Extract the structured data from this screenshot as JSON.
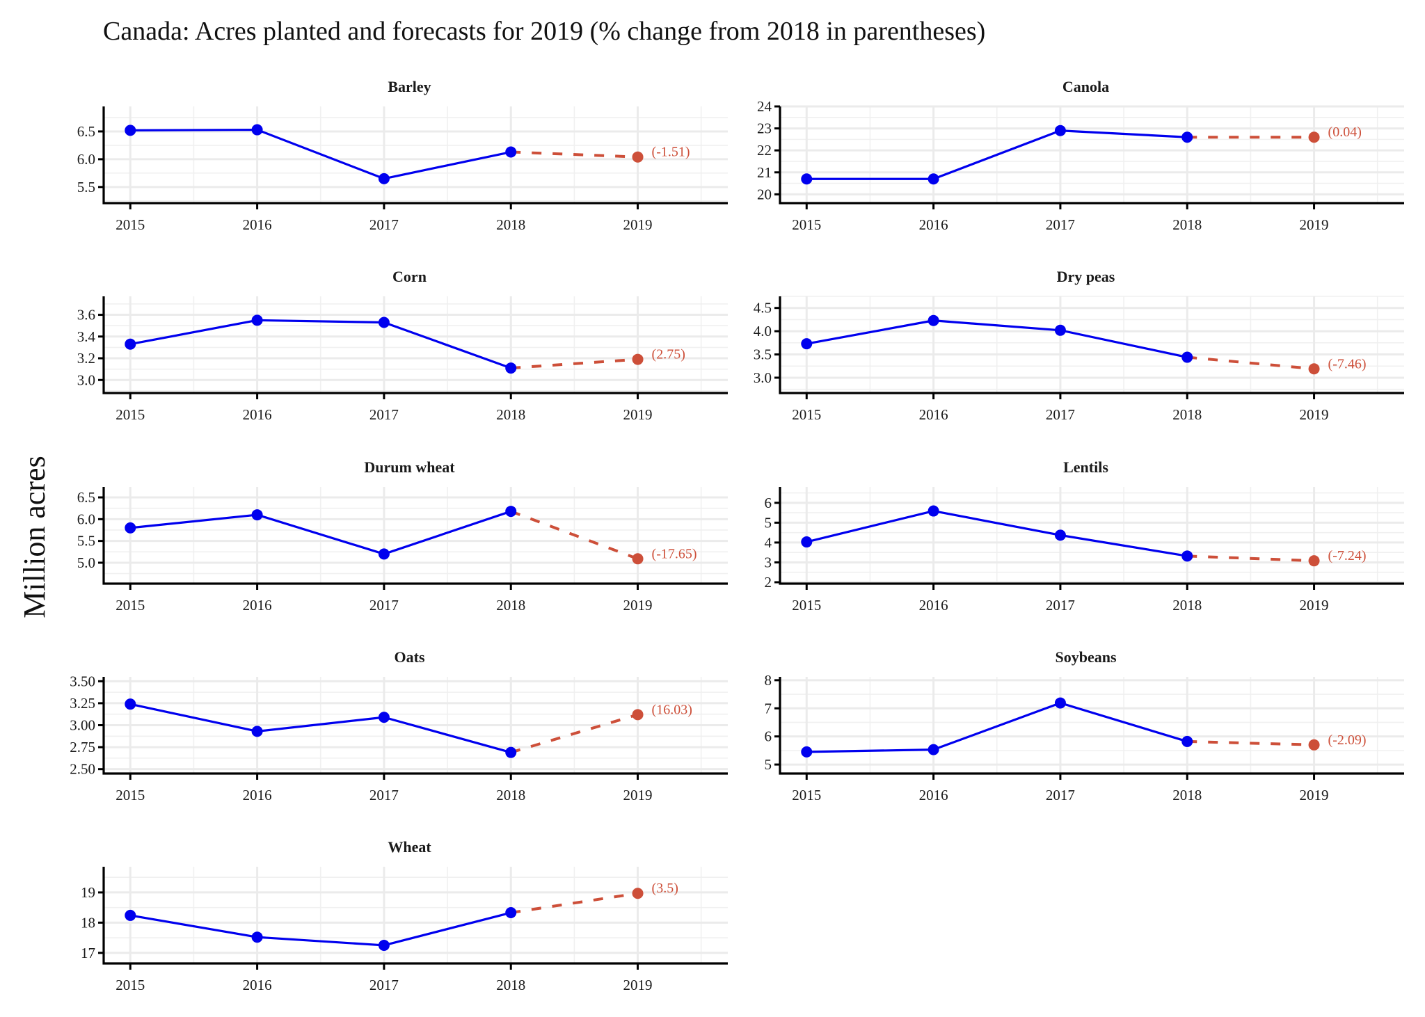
{
  "chart_data": {
    "type": "line",
    "title": "Canada: Acres planted and forecasts for 2019 (% change from 2018 in parentheses)",
    "ylabel": "Million acres",
    "xlabel": "",
    "x": [
      2015,
      2016,
      2017,
      2018,
      2019
    ],
    "x_tick_labels": [
      "2015",
      "2016",
      "2017",
      "2018",
      "2019"
    ],
    "xlim": [
      2014.79,
      2019.71
    ],
    "grid": true,
    "legend": "none",
    "colors": {
      "actual": "#0000ee",
      "forecast": "#cd4f39"
    },
    "series_style": {
      "actual": "solid line with points, 2015-2018",
      "forecast": "dashed line from 2018 to 2019 forecast point"
    },
    "panels": [
      {
        "name": "Barley",
        "actual": [
          6.52,
          6.53,
          5.65,
          6.13
        ],
        "forecast": 6.04,
        "pct_change_label": "(-1.51)",
        "ylim": [
          5.21,
          6.95
        ],
        "y_ticks": [
          5.5,
          6.0,
          6.5
        ],
        "y_tick_labels": [
          "5.5",
          "6.0",
          "6.5"
        ]
      },
      {
        "name": "Canola",
        "actual": [
          20.7,
          20.7,
          22.9,
          22.6
        ],
        "forecast": 22.6,
        "pct_change_label": "(0.04)",
        "ylim": [
          19.6,
          24.0
        ],
        "y_ticks": [
          20,
          21,
          22,
          23,
          24
        ],
        "y_tick_labels": [
          "20",
          "21",
          "22",
          "23",
          "24"
        ]
      },
      {
        "name": "Corn",
        "actual": [
          3.33,
          3.55,
          3.53,
          3.11
        ],
        "forecast": 3.19,
        "pct_change_label": "(2.75)",
        "ylim": [
          2.88,
          3.77
        ],
        "y_ticks": [
          3.0,
          3.2,
          3.4,
          3.6
        ],
        "y_tick_labels": [
          "3.0",
          "3.2",
          "3.4",
          "3.6"
        ]
      },
      {
        "name": "Dry peas",
        "actual": [
          3.73,
          4.23,
          4.02,
          3.44
        ],
        "forecast": 3.19,
        "pct_change_label": "(-7.46)",
        "ylim": [
          2.67,
          4.75
        ],
        "y_ticks": [
          3.0,
          3.5,
          4.0,
          4.5
        ],
        "y_tick_labels": [
          "3.0",
          "3.5",
          "4.0",
          "4.5"
        ]
      },
      {
        "name": "Durum wheat",
        "actual": [
          5.8,
          6.1,
          5.2,
          6.18
        ],
        "forecast": 5.09,
        "pct_change_label": "(-17.65)",
        "ylim": [
          4.52,
          6.74
        ],
        "y_ticks": [
          5.0,
          5.5,
          6.0,
          6.5
        ],
        "y_tick_labels": [
          "5.0",
          "5.5",
          "6.0",
          "6.5"
        ]
      },
      {
        "name": "Lentils",
        "actual": [
          4.03,
          5.59,
          4.37,
          3.32
        ],
        "forecast": 3.08,
        "pct_change_label": "(-7.24)",
        "ylim": [
          1.93,
          6.8
        ],
        "y_ticks": [
          2,
          3,
          4,
          5,
          6
        ],
        "y_tick_labels": [
          "2",
          "3",
          "4",
          "5",
          "6"
        ]
      },
      {
        "name": "Oats",
        "actual": [
          3.24,
          2.93,
          3.09,
          2.69
        ],
        "forecast": 3.12,
        "pct_change_label": "(16.03)",
        "ylim": [
          2.45,
          3.55
        ],
        "y_ticks": [
          2.5,
          2.75,
          3.0,
          3.25,
          3.5
        ],
        "y_tick_labels": [
          "2.50",
          "2.75",
          "3.00",
          "3.25",
          "3.50"
        ]
      },
      {
        "name": "Soybeans",
        "actual": [
          5.45,
          5.53,
          7.19,
          5.82
        ],
        "forecast": 5.7,
        "pct_change_label": "(-2.09)",
        "ylim": [
          4.68,
          8.12
        ],
        "y_ticks": [
          5,
          6,
          7,
          8
        ],
        "y_tick_labels": [
          "5",
          "6",
          "7",
          "8"
        ]
      },
      {
        "name": "Wheat",
        "actual": [
          18.24,
          17.52,
          17.25,
          18.33
        ],
        "forecast": 18.97,
        "pct_change_label": "(3.5)",
        "ylim": [
          16.65,
          19.85
        ],
        "y_ticks": [
          17,
          18,
          19
        ],
        "y_tick_labels": [
          "17",
          "18",
          "19"
        ]
      }
    ]
  }
}
